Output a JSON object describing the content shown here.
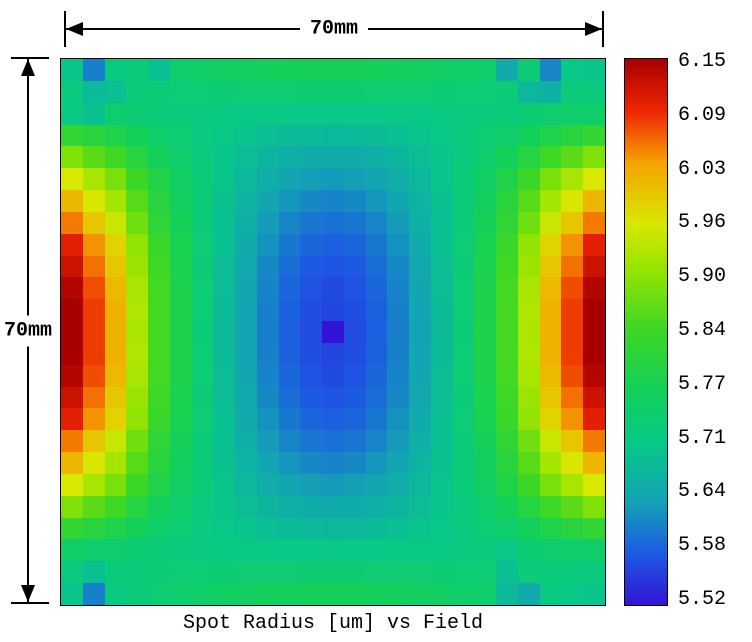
{
  "title": "Spot Radius [um] vs Field",
  "dimensions": {
    "top_label": "70mm",
    "left_label": "70mm"
  },
  "colorbar": {
    "labels": [
      "6.15",
      "6.09",
      "6.03",
      "5.96",
      "5.90",
      "5.84",
      "5.77",
      "5.71",
      "5.64",
      "5.58",
      "5.52"
    ],
    "vmin": 5.52,
    "vmax": 6.15,
    "border_color": "#000000",
    "stops": [
      {
        "t": 0.0,
        "color": "#3213d6"
      },
      {
        "t": 0.095,
        "color": "#1c5be2"
      },
      {
        "t": 0.19,
        "color": "#13a3b4"
      },
      {
        "t": 0.3,
        "color": "#07c985"
      },
      {
        "t": 0.397,
        "color": "#14d058"
      },
      {
        "t": 0.508,
        "color": "#3fd723"
      },
      {
        "t": 0.603,
        "color": "#8ce303"
      },
      {
        "t": 0.698,
        "color": "#d8e800"
      },
      {
        "t": 0.81,
        "color": "#f5a300"
      },
      {
        "t": 0.905,
        "color": "#ee2504"
      },
      {
        "t": 1.0,
        "color": "#a80000"
      }
    ]
  },
  "chart_data": {
    "type": "heatmap",
    "title": "Spot Radius [um] vs Field",
    "value_units": "um",
    "field_extent": {
      "width_mm": 70,
      "height_mm": 70
    },
    "grid": {
      "rows": 25,
      "cols": 25
    },
    "vmin": 5.52,
    "vmax": 6.15,
    "legend_position": "right",
    "values": [
      [
        5.7,
        5.61,
        5.716,
        5.727,
        5.69,
        5.743,
        5.75,
        5.756,
        5.76,
        5.764,
        5.767,
        5.769,
        5.77,
        5.769,
        5.767,
        5.764,
        5.76,
        5.756,
        5.75,
        5.743,
        5.655,
        5.727,
        5.615,
        5.708,
        5.7
      ],
      [
        5.72,
        5.68,
        5.69,
        5.726,
        5.729,
        5.731,
        5.732,
        5.733,
        5.735,
        5.736,
        5.736,
        5.737,
        5.737,
        5.737,
        5.736,
        5.736,
        5.735,
        5.733,
        5.732,
        5.731,
        5.729,
        5.675,
        5.665,
        5.722,
        5.72
      ],
      [
        5.715,
        5.695,
        5.74,
        5.733,
        5.727,
        5.723,
        5.719,
        5.715,
        5.712,
        5.71,
        5.708,
        5.707,
        5.706,
        5.707,
        5.708,
        5.71,
        5.712,
        5.715,
        5.719,
        5.723,
        5.727,
        5.733,
        5.74,
        5.745,
        5.75
      ],
      [
        5.82,
        5.803,
        5.787,
        5.766,
        5.746,
        5.732,
        5.719,
        5.707,
        5.698,
        5.69,
        5.684,
        5.68,
        5.678,
        5.68,
        5.684,
        5.69,
        5.698,
        5.707,
        5.719,
        5.732,
        5.746,
        5.766,
        5.787,
        5.803,
        5.82
      ],
      [
        5.89,
        5.862,
        5.836,
        5.8,
        5.767,
        5.743,
        5.721,
        5.702,
        5.686,
        5.673,
        5.662,
        5.656,
        5.653,
        5.656,
        5.662,
        5.673,
        5.686,
        5.702,
        5.721,
        5.743,
        5.767,
        5.8,
        5.836,
        5.862,
        5.89
      ],
      [
        5.96,
        5.921,
        5.885,
        5.835,
        5.79,
        5.756,
        5.726,
        5.7,
        5.677,
        5.659,
        5.645,
        5.636,
        5.632,
        5.636,
        5.645,
        5.659,
        5.677,
        5.7,
        5.726,
        5.756,
        5.79,
        5.835,
        5.885,
        5.921,
        5.96
      ],
      [
        6.01,
        5.962,
        5.919,
        5.859,
        5.804,
        5.763,
        5.727,
        5.695,
        5.668,
        5.646,
        5.629,
        5.618,
        5.613,
        5.618,
        5.629,
        5.646,
        5.668,
        5.695,
        5.727,
        5.763,
        5.804,
        5.859,
        5.919,
        5.962,
        6.01
      ],
      [
        6.05,
        5.996,
        5.946,
        5.878,
        5.815,
        5.769,
        5.727,
        5.691,
        5.66,
        5.634,
        5.615,
        5.602,
        5.597,
        5.602,
        5.615,
        5.634,
        5.66,
        5.691,
        5.727,
        5.769,
        5.815,
        5.878,
        5.946,
        5.996,
        6.05
      ],
      [
        6.1,
        6.038,
        5.981,
        5.903,
        5.832,
        5.779,
        5.731,
        5.69,
        5.655,
        5.626,
        5.604,
        5.589,
        5.583,
        5.589,
        5.604,
        5.626,
        5.655,
        5.69,
        5.731,
        5.779,
        5.832,
        5.903,
        5.981,
        6.038,
        6.1
      ],
      [
        6.12,
        6.054,
        5.994,
        5.912,
        5.837,
        5.78,
        5.73,
        5.686,
        5.649,
        5.618,
        5.595,
        5.579,
        5.573,
        5.579,
        5.595,
        5.618,
        5.649,
        5.686,
        5.73,
        5.78,
        5.837,
        5.912,
        5.994,
        6.054,
        6.12
      ],
      [
        6.14,
        6.071,
        6.008,
        5.922,
        5.843,
        5.784,
        5.731,
        5.685,
        5.645,
        5.613,
        5.589,
        5.573,
        5.566,
        5.573,
        5.589,
        5.613,
        5.645,
        5.685,
        5.731,
        5.784,
        5.843,
        5.922,
        6.008,
        6.071,
        6.14
      ],
      [
        6.15,
        6.079,
        6.015,
        5.927,
        5.845,
        5.785,
        5.731,
        5.684,
        5.643,
        5.611,
        5.585,
        5.569,
        5.562,
        5.569,
        5.585,
        5.611,
        5.643,
        5.684,
        5.731,
        5.785,
        5.845,
        5.927,
        6.015,
        6.079,
        6.15
      ],
      [
        6.15,
        6.079,
        6.014,
        5.926,
        5.844,
        5.784,
        5.729,
        5.682,
        5.642,
        5.609,
        5.583,
        5.567,
        5.52,
        5.567,
        5.583,
        5.609,
        5.642,
        5.682,
        5.729,
        5.784,
        5.844,
        5.926,
        6.014,
        6.079,
        6.15
      ],
      [
        6.15,
        6.079,
        6.015,
        5.927,
        5.845,
        5.785,
        5.731,
        5.684,
        5.643,
        5.611,
        5.585,
        5.569,
        5.562,
        5.569,
        5.585,
        5.611,
        5.643,
        5.684,
        5.731,
        5.785,
        5.845,
        5.927,
        6.015,
        6.079,
        6.15
      ],
      [
        6.14,
        6.071,
        6.008,
        5.922,
        5.843,
        5.784,
        5.731,
        5.685,
        5.645,
        5.613,
        5.589,
        5.573,
        5.566,
        5.573,
        5.589,
        5.613,
        5.645,
        5.685,
        5.731,
        5.784,
        5.843,
        5.922,
        6.008,
        6.071,
        6.14
      ],
      [
        6.12,
        6.054,
        5.994,
        5.912,
        5.837,
        5.78,
        5.73,
        5.686,
        5.649,
        5.618,
        5.595,
        5.579,
        5.573,
        5.579,
        5.595,
        5.618,
        5.649,
        5.686,
        5.73,
        5.78,
        5.837,
        5.912,
        5.994,
        6.054,
        6.12
      ],
      [
        6.1,
        6.038,
        5.981,
        5.903,
        5.832,
        5.779,
        5.731,
        5.69,
        5.655,
        5.626,
        5.604,
        5.589,
        5.583,
        5.589,
        5.604,
        5.626,
        5.655,
        5.69,
        5.731,
        5.779,
        5.832,
        5.903,
        5.981,
        6.038,
        6.1
      ],
      [
        6.05,
        5.996,
        5.946,
        5.878,
        5.815,
        5.769,
        5.727,
        5.691,
        5.66,
        5.634,
        5.615,
        5.602,
        5.597,
        5.602,
        5.615,
        5.634,
        5.66,
        5.691,
        5.727,
        5.769,
        5.815,
        5.878,
        5.946,
        5.996,
        6.05
      ],
      [
        6.01,
        5.962,
        5.919,
        5.859,
        5.804,
        5.763,
        5.727,
        5.695,
        5.668,
        5.646,
        5.629,
        5.618,
        5.613,
        5.618,
        5.629,
        5.646,
        5.668,
        5.695,
        5.727,
        5.763,
        5.804,
        5.859,
        5.919,
        5.962,
        6.01
      ],
      [
        5.96,
        5.921,
        5.885,
        5.835,
        5.79,
        5.756,
        5.726,
        5.7,
        5.677,
        5.659,
        5.645,
        5.636,
        5.632,
        5.636,
        5.645,
        5.659,
        5.677,
        5.7,
        5.726,
        5.756,
        5.79,
        5.835,
        5.885,
        5.921,
        5.96
      ],
      [
        5.89,
        5.862,
        5.836,
        5.8,
        5.767,
        5.743,
        5.721,
        5.702,
        5.686,
        5.673,
        5.662,
        5.656,
        5.653,
        5.656,
        5.662,
        5.673,
        5.686,
        5.702,
        5.721,
        5.743,
        5.767,
        5.8,
        5.836,
        5.862,
        5.89
      ],
      [
        5.82,
        5.803,
        5.787,
        5.766,
        5.746,
        5.732,
        5.719,
        5.707,
        5.698,
        5.69,
        5.684,
        5.68,
        5.678,
        5.68,
        5.684,
        5.69,
        5.698,
        5.707,
        5.719,
        5.732,
        5.746,
        5.766,
        5.787,
        5.803,
        5.82
      ],
      [
        5.75,
        5.745,
        5.74,
        5.733,
        5.727,
        5.723,
        5.719,
        5.715,
        5.712,
        5.71,
        5.708,
        5.707,
        5.706,
        5.707,
        5.708,
        5.71,
        5.712,
        5.715,
        5.719,
        5.723,
        5.705,
        5.733,
        5.74,
        5.745,
        5.75
      ],
      [
        5.72,
        5.69,
        5.724,
        5.726,
        5.729,
        5.731,
        5.732,
        5.733,
        5.735,
        5.736,
        5.736,
        5.737,
        5.737,
        5.737,
        5.736,
        5.736,
        5.735,
        5.733,
        5.732,
        5.731,
        5.69,
        5.726,
        5.724,
        5.722,
        5.72
      ],
      [
        5.7,
        5.61,
        5.716,
        5.727,
        5.736,
        5.743,
        5.75,
        5.756,
        5.76,
        5.764,
        5.767,
        5.769,
        5.77,
        5.769,
        5.767,
        5.764,
        5.76,
        5.756,
        5.75,
        5.743,
        5.68,
        5.655,
        5.716,
        5.708,
        5.7
      ]
    ]
  }
}
